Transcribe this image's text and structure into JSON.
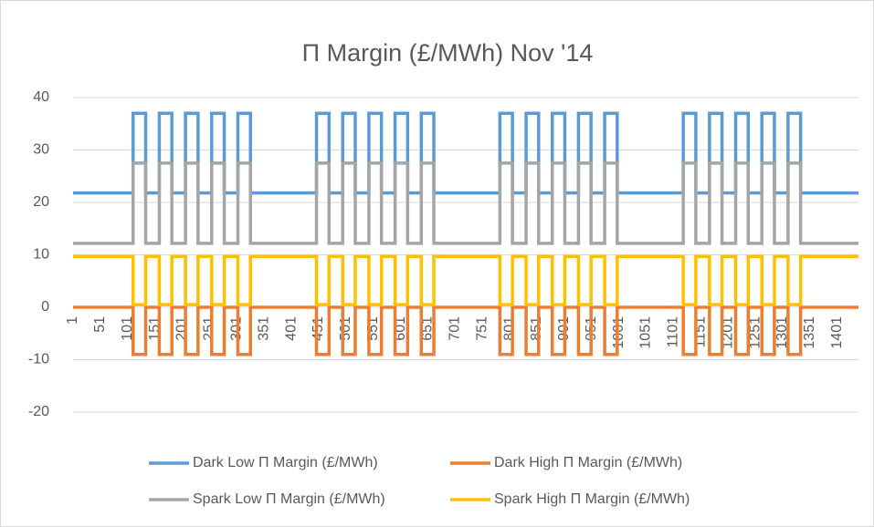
{
  "chart_data": {
    "type": "line",
    "title": "Π Margin (£/MWh) Nov '14",
    "x": [
      1,
      111,
      111,
      134,
      134,
      159,
      159,
      182,
      182,
      207,
      207,
      230,
      230,
      255,
      255,
      278,
      278,
      303,
      303,
      326,
      326,
      447,
      447,
      470,
      470,
      495,
      495,
      518,
      518,
      543,
      543,
      566,
      566,
      591,
      591,
      614,
      614,
      639,
      639,
      662,
      662,
      783,
      783,
      806,
      806,
      831,
      831,
      854,
      854,
      879,
      879,
      902,
      902,
      927,
      927,
      950,
      950,
      975,
      975,
      998,
      998,
      1119,
      1119,
      1142,
      1142,
      1167,
      1167,
      1190,
      1190,
      1215,
      1215,
      1238,
      1238,
      1263,
      1263,
      1286,
      1286,
      1311,
      1311,
      1334,
      1334,
      1440
    ],
    "series": [
      {
        "name": "Dark Low Π Margin (£/MWh)",
        "color": "#5b9bd5",
        "values": [
          21.8,
          21.8,
          37,
          37,
          21.8,
          21.8,
          37,
          37,
          21.8,
          21.8,
          37,
          37,
          21.8,
          21.8,
          37,
          37,
          21.8,
          21.8,
          37,
          37,
          21.8,
          21.8,
          37,
          37,
          21.8,
          21.8,
          37,
          37,
          21.8,
          21.8,
          37,
          37,
          21.8,
          21.8,
          37,
          37,
          21.8,
          21.8,
          37,
          37,
          21.8,
          21.8,
          37,
          37,
          21.8,
          21.8,
          37,
          37,
          21.8,
          21.8,
          37,
          37,
          21.8,
          21.8,
          37,
          37,
          21.8,
          21.8,
          37,
          37,
          21.8,
          21.8,
          37,
          37,
          21.8,
          21.8,
          37,
          37,
          21.8,
          21.8,
          37,
          37,
          21.8,
          21.8,
          37,
          37,
          21.8,
          21.8,
          37,
          37,
          21.8,
          21.8
        ]
      },
      {
        "name": "Dark High Π Margin (£/MWh)",
        "color": "#ed7d31",
        "values": [
          0,
          0,
          -9,
          -9,
          0,
          0,
          -9,
          -9,
          0,
          0,
          -9,
          -9,
          0,
          0,
          -9,
          -9,
          0,
          0,
          -9,
          -9,
          0,
          0,
          -9,
          -9,
          0,
          0,
          -9,
          -9,
          0,
          0,
          -9,
          -9,
          0,
          0,
          -9,
          -9,
          0,
          0,
          -9,
          -9,
          0,
          0,
          -9,
          -9,
          0,
          0,
          -9,
          -9,
          0,
          0,
          -9,
          -9,
          0,
          0,
          -9,
          -9,
          0,
          0,
          -9,
          -9,
          0,
          0,
          -9,
          -9,
          0,
          0,
          -9,
          -9,
          0,
          0,
          -9,
          -9,
          0,
          0,
          -9,
          -9,
          0,
          0,
          -9,
          -9,
          0,
          0
        ]
      },
      {
        "name": "Spark Low Π Margin (£/MWh)",
        "color": "#a5a5a5",
        "values": [
          12.2,
          12.2,
          27.5,
          27.5,
          12.2,
          12.2,
          27.5,
          27.5,
          12.2,
          12.2,
          27.5,
          27.5,
          12.2,
          12.2,
          27.5,
          27.5,
          12.2,
          12.2,
          27.5,
          27.5,
          12.2,
          12.2,
          27.5,
          27.5,
          12.2,
          12.2,
          27.5,
          27.5,
          12.2,
          12.2,
          27.5,
          27.5,
          12.2,
          12.2,
          27.5,
          27.5,
          12.2,
          12.2,
          27.5,
          27.5,
          12.2,
          12.2,
          27.5,
          27.5,
          12.2,
          12.2,
          27.5,
          27.5,
          12.2,
          12.2,
          27.5,
          27.5,
          12.2,
          12.2,
          27.5,
          27.5,
          12.2,
          12.2,
          27.5,
          27.5,
          12.2,
          12.2,
          27.5,
          27.5,
          12.2,
          12.2,
          27.5,
          27.5,
          12.2,
          12.2,
          27.5,
          27.5,
          12.2,
          12.2,
          27.5,
          27.5,
          12.2,
          12.2,
          27.5,
          27.5,
          12.2,
          12.2
        ]
      },
      {
        "name": "Spark High Π Margin (£/MWh)",
        "color": "#ffc000",
        "values": [
          9.7,
          9.7,
          0.5,
          0.5,
          9.7,
          9.7,
          0.5,
          0.5,
          9.7,
          9.7,
          0.5,
          0.5,
          9.7,
          9.7,
          0.5,
          0.5,
          9.7,
          9.7,
          0.5,
          0.5,
          9.7,
          9.7,
          0.5,
          0.5,
          9.7,
          9.7,
          0.5,
          0.5,
          9.7,
          9.7,
          0.5,
          0.5,
          9.7,
          9.7,
          0.5,
          0.5,
          9.7,
          9.7,
          0.5,
          0.5,
          9.7,
          9.7,
          0.5,
          0.5,
          9.7,
          9.7,
          0.5,
          0.5,
          9.7,
          9.7,
          0.5,
          0.5,
          9.7,
          9.7,
          0.5,
          0.5,
          9.7,
          9.7,
          0.5,
          0.5,
          9.7,
          9.7,
          0.5,
          0.5,
          9.7,
          9.7,
          0.5,
          0.5,
          9.7,
          9.7,
          0.5,
          0.5,
          9.7,
          9.7,
          0.5,
          0.5,
          9.7,
          9.7,
          0.5,
          0.5,
          9.7,
          9.7
        ]
      }
    ],
    "xlim": [
      1,
      1440
    ],
    "xticks": [
      1,
      51,
      101,
      151,
      201,
      251,
      301,
      351,
      401,
      451,
      501,
      551,
      601,
      651,
      701,
      751,
      801,
      851,
      901,
      951,
      1001,
      1051,
      1101,
      1151,
      1201,
      1251,
      1301,
      1351,
      1401
    ],
    "ylim": [
      -20,
      40
    ],
    "yticks": [
      -20,
      -10,
      0,
      10,
      20,
      30,
      40
    ],
    "grid": true
  }
}
